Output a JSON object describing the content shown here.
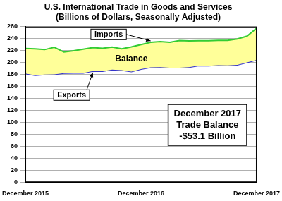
{
  "chart_data": {
    "type": "line",
    "title": "U.S. International Trade in Goods and Services",
    "subtitle": "(Billions of Dollars, Seasonally Adjusted)",
    "categories": [
      "December 2015",
      null,
      null,
      null,
      null,
      null,
      null,
      null,
      null,
      null,
      null,
      null,
      "December 2016",
      null,
      null,
      null,
      null,
      null,
      null,
      null,
      null,
      null,
      null,
      null,
      "December 2017"
    ],
    "series": [
      {
        "name": "Imports",
        "color": "#33cc33",
        "values": [
          223.5,
          222.9,
          221.6,
          225.4,
          217.5,
          219.6,
          222.3,
          225.0,
          223.7,
          225.7,
          222.9,
          226.1,
          229.9,
          233.8,
          235.0,
          233.9,
          236.7,
          236.2,
          236.5,
          236.5,
          237.1,
          237.2,
          239.4,
          244.1,
          257.5
        ]
      },
      {
        "name": "Exports",
        "color": "#3333cc",
        "values": [
          181.7,
          178.6,
          179.7,
          180.0,
          182.1,
          182.5,
          182.6,
          185.6,
          185.4,
          188.0,
          187.3,
          184.9,
          189.0,
          191.8,
          192.3,
          191.2,
          191.4,
          192.3,
          195.0,
          194.5,
          195.4,
          195.3,
          196.1,
          200.2,
          204.4
        ]
      }
    ],
    "ylim": [
      0,
      260
    ],
    "yticks": [
      0,
      20,
      40,
      60,
      80,
      100,
      120,
      140,
      160,
      180,
      200,
      220,
      240,
      260
    ],
    "grid": true,
    "annotations": [
      "Balance"
    ],
    "text_box": [
      "December 2017",
      "Trade Balance",
      "-$53.1 Billion"
    ]
  }
}
